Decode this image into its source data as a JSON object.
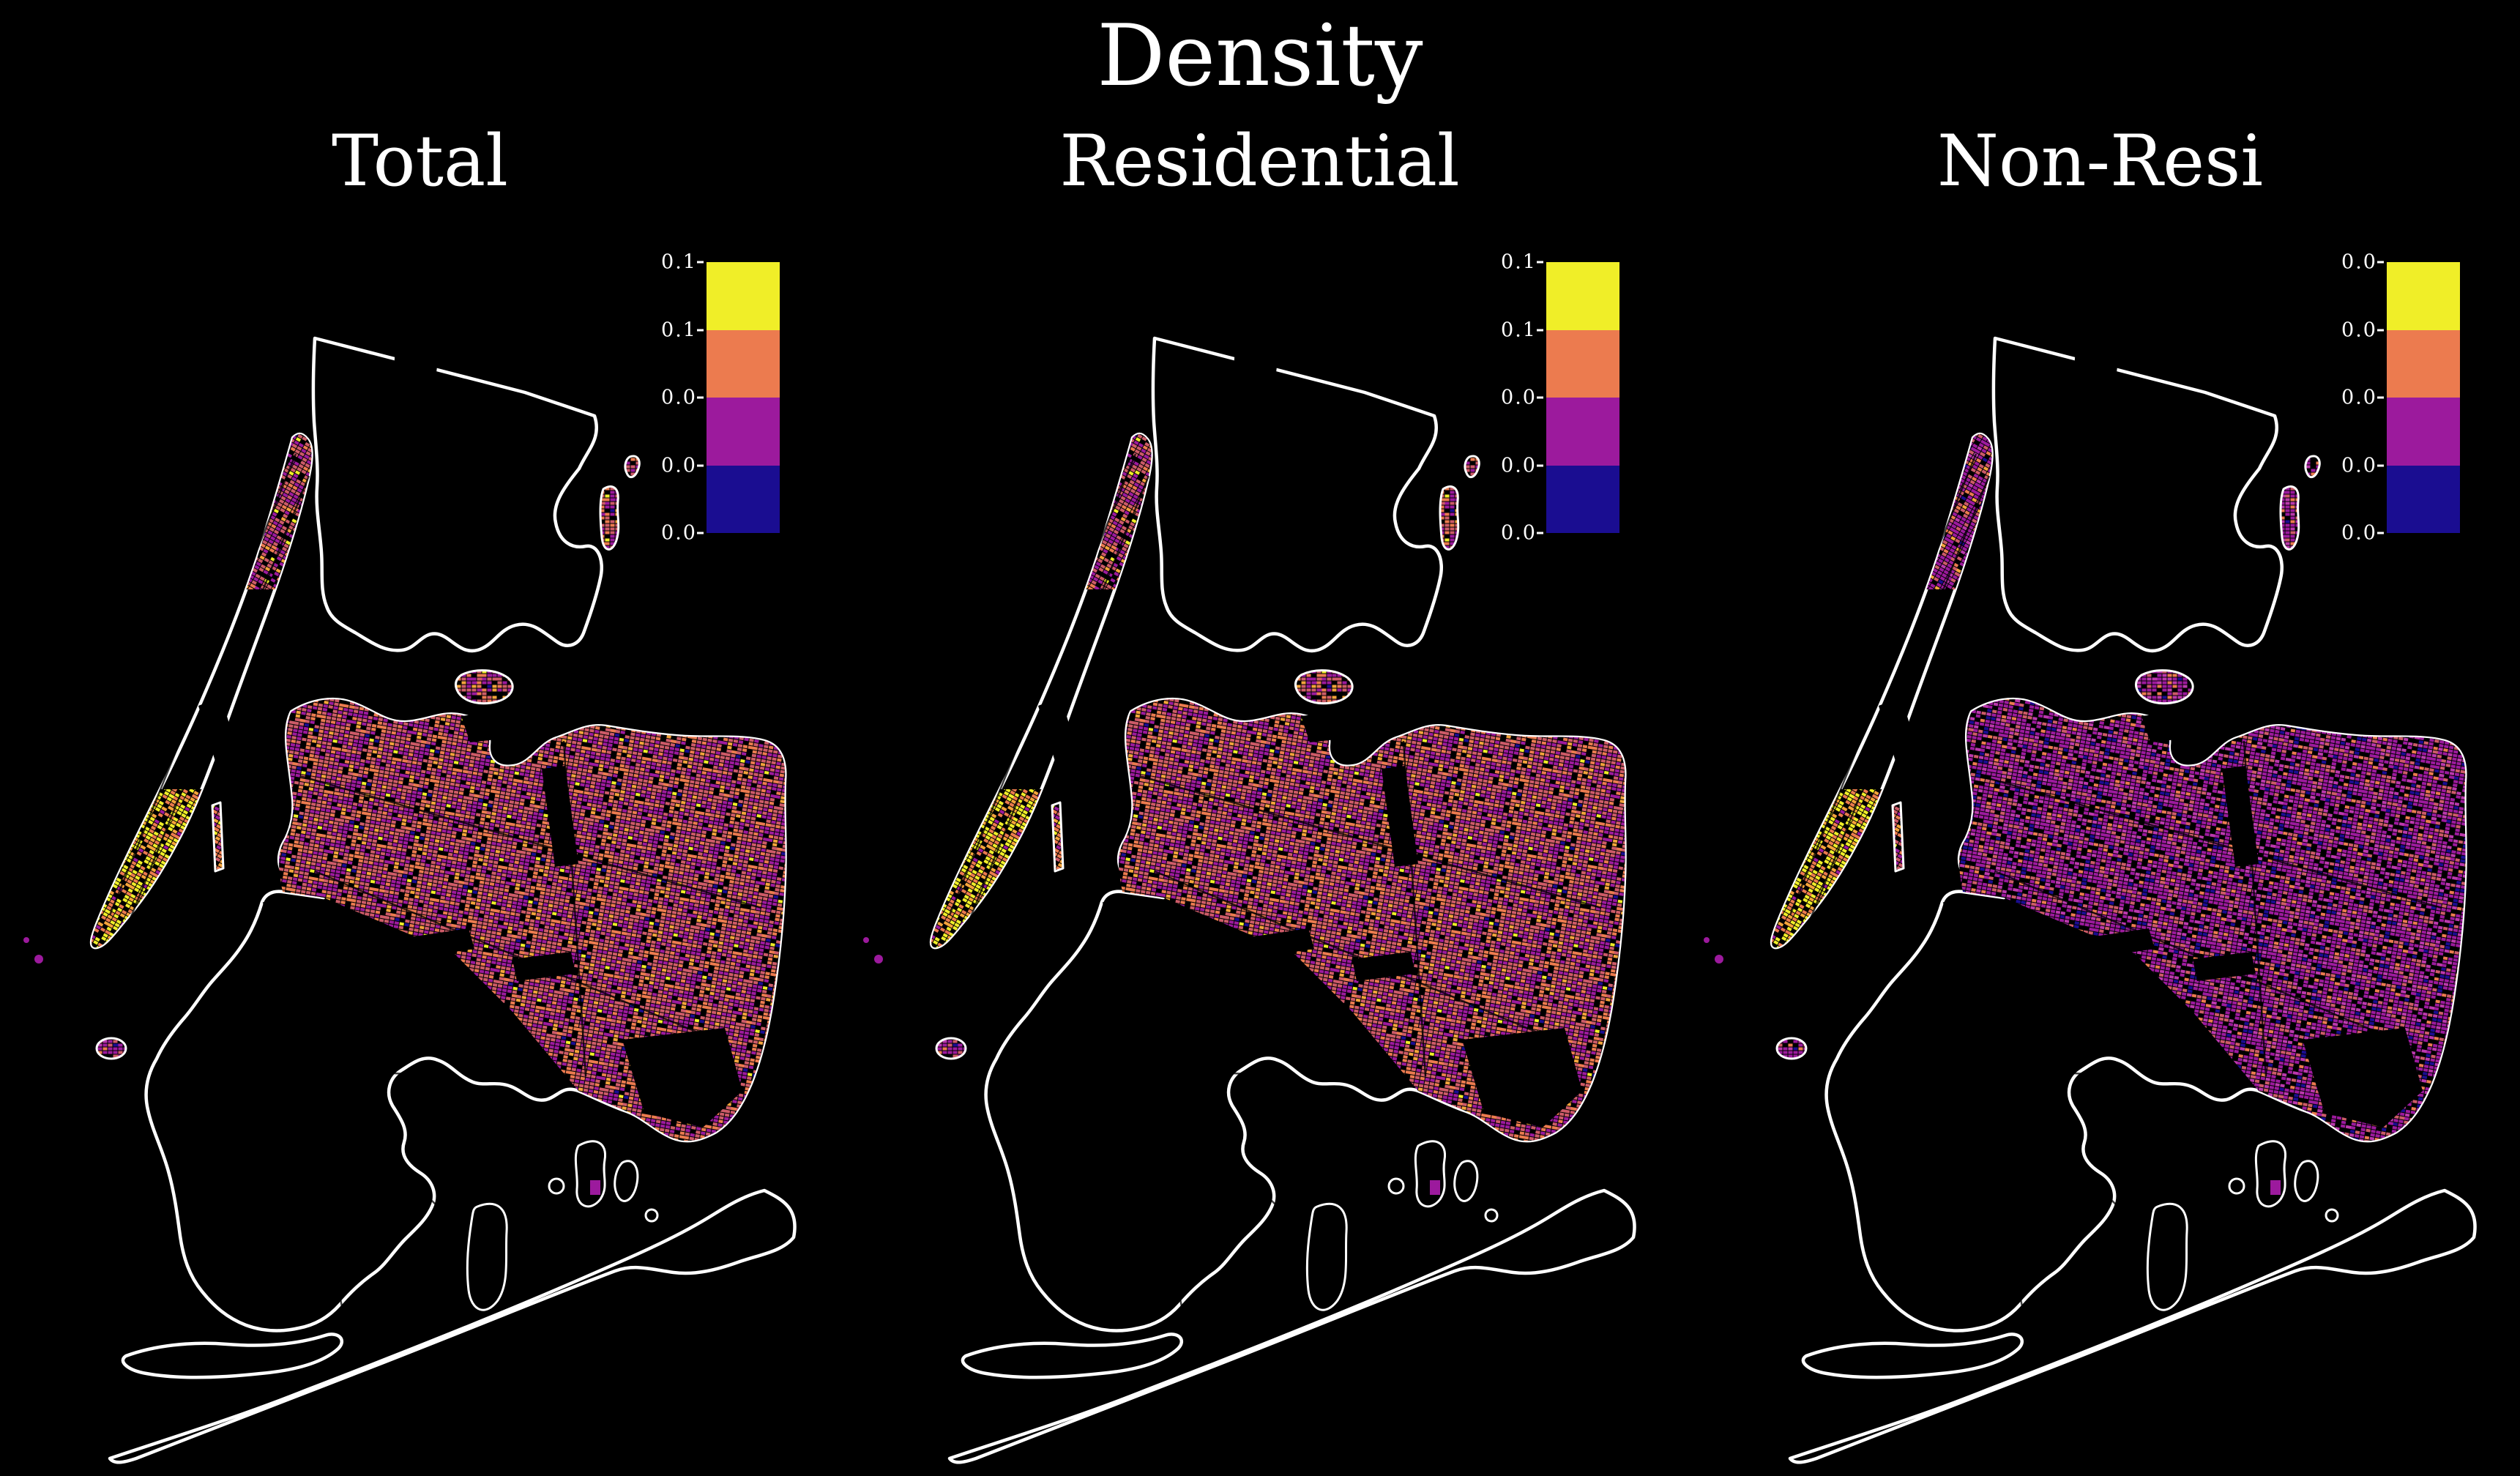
{
  "figure": {
    "title": "Density",
    "background_color": "#000000",
    "text_color": "#ffffff"
  },
  "panels": [
    {
      "title": "Total",
      "colorbar_ticks": [
        "0.1",
        "0.1",
        "0.0",
        "0.0",
        "0.0"
      ],
      "regions": {
        "bronx": "mixed",
        "manhattan": "warm",
        "uptown": "mixed",
        "midtown": "hot",
        "queens": "mixed",
        "brooklyn": "warm",
        "coney": "mixed",
        "rockaway": "cool",
        "rikers": "mixed",
        "governors": "cool",
        "roosevelt": "warm"
      }
    },
    {
      "title": "Residential",
      "colorbar_ticks": [
        "0.1",
        "0.1",
        "0.0",
        "0.0",
        "0.0"
      ],
      "regions": {
        "bronx": "mixed",
        "manhattan": "warm",
        "uptown": "mixed",
        "midtown": "hot",
        "queens": "mixed",
        "brooklyn": "warm",
        "coney": "mixed",
        "rockaway": "cool",
        "rikers": "mixed",
        "governors": "cool",
        "roosevelt": "warm"
      }
    },
    {
      "title": "Non-Resi",
      "colorbar_ticks": [
        "0.0",
        "0.0",
        "0.0",
        "0.0",
        "0.0"
      ],
      "regions": {
        "bronx": "deep",
        "manhattan": "mixed",
        "uptown": "cool",
        "midtown": "hot",
        "queens": "deep",
        "brooklyn": "cool",
        "coney": "deep",
        "rockaway": "deep",
        "rikers": "deep",
        "governors": "deep",
        "roosevelt": "mixed"
      }
    }
  ],
  "colorbar": {
    "bin_colors_top_to_bottom": [
      "#f0ee28",
      "#ec7b4f",
      "#9c1a9d",
      "#1a0d91"
    ]
  },
  "palette": {
    "yellow": "#f0ee28",
    "amber": "#f5a43b",
    "orange": "#ec7b4f",
    "salmon": "#cd5b68",
    "purple": "#9c1a9d",
    "magenta": "#bb39ad",
    "navy": "#1a0d91",
    "black": "#000000",
    "coastline": "#ffffff"
  },
  "texture_classes": {
    "hot": [
      [
        "yellow",
        0.52
      ],
      [
        "amber",
        0.18
      ],
      [
        "orange",
        0.18
      ],
      [
        "purple",
        0.07
      ],
      [
        "black",
        0.05
      ]
    ],
    "warm": [
      [
        "orange",
        0.4
      ],
      [
        "amber",
        0.18
      ],
      [
        "yellow",
        0.12
      ],
      [
        "salmon",
        0.11
      ],
      [
        "purple",
        0.12
      ],
      [
        "black",
        0.07
      ]
    ],
    "mixed": [
      [
        "salmon",
        0.32
      ],
      [
        "orange",
        0.18
      ],
      [
        "amber",
        0.07
      ],
      [
        "purple",
        0.27
      ],
      [
        "yellow",
        0.03
      ],
      [
        "navy",
        0.01
      ],
      [
        "black",
        0.12
      ]
    ],
    "cool": [
      [
        "purple",
        0.44
      ],
      [
        "salmon",
        0.16
      ],
      [
        "orange",
        0.1
      ],
      [
        "magenta",
        0.12
      ],
      [
        "amber",
        0.03
      ],
      [
        "navy",
        0.03
      ],
      [
        "black",
        0.12
      ]
    ],
    "deep": [
      [
        "purple",
        0.5
      ],
      [
        "magenta",
        0.15
      ],
      [
        "salmon",
        0.12
      ],
      [
        "orange",
        0.06
      ],
      [
        "navy",
        0.05
      ],
      [
        "black",
        0.12
      ]
    ]
  },
  "chart_data": {
    "type": "choropleth_map",
    "title": "Density",
    "panel_titles": [
      "Total",
      "Residential",
      "Non-Resi"
    ],
    "geography": "New York City tax-lot map (Bronx, Manhattan, Queens, Brooklyn); water/background black, coastlines white",
    "colorbar": {
      "orientation": "vertical, discrete 4 bins, inner top-right of each panel",
      "bins_top_to_bottom": [
        "#f0ee28",
        "#ec7b4f",
        "#9c1a9d",
        "#1a0d91"
      ],
      "tick_labels_by_panel": [
        [
          "0.1",
          "0.1",
          "0.0",
          "0.0",
          "0.0"
        ],
        [
          "0.1",
          "0.1",
          "0.0",
          "0.0",
          "0.0"
        ],
        [
          "0.0",
          "0.0",
          "0.0",
          "0.0",
          "0.0"
        ]
      ]
    },
    "qualitative_reading": {
      "Total": "Manhattan mostly yellow/orange (highest density, midtown brightest); Bronx and Brooklyn orange with purple patches; Queens salmon/purple (lower).",
      "Residential": "Nearly identical distribution to Total: yellow Manhattan core, orange Brooklyn/Bronx, salmon-purple Queens.",
      "Non-Resi": "Much lower overall: city mostly purple; Midtown Manhattan remains yellow; scattered orange along commercial corridors."
    }
  }
}
